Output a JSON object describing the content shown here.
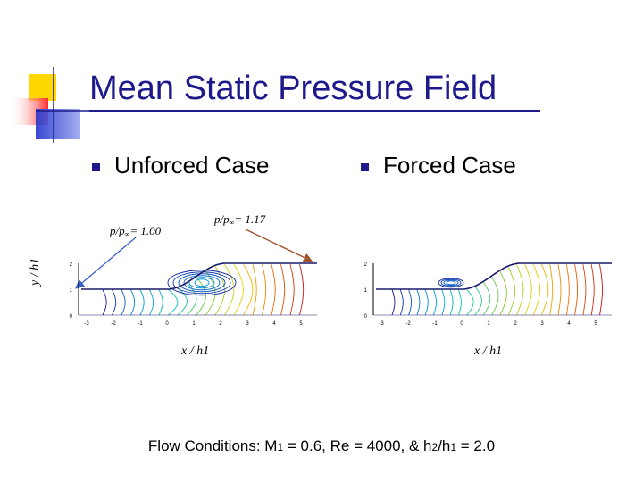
{
  "slide": {
    "title": "Mean Static Pressure Field",
    "bullets": [
      {
        "label": "Unforced Case"
      },
      {
        "label": "Forced Case"
      }
    ],
    "annotations": {
      "left": {
        "prefix": "p/p",
        "sub": "∞",
        "suffix": "= 1.00"
      },
      "right": {
        "prefix": "p/p",
        "sub": "∞",
        "suffix": "= 1.17"
      }
    },
    "y_axis_label": "y / h1",
    "x_axis_label_left": "x / h1",
    "x_axis_label_right": "x / h1",
    "x_ticks": [
      "-3",
      "-2",
      "-1",
      "0",
      "1",
      "2",
      "3",
      "4",
      "5"
    ],
    "y_ticks": [
      "2",
      "1",
      "0"
    ],
    "footer": {
      "t1": "Flow Conditions: M",
      "s1": "1",
      "t2": " = 0.6, Re = 4000, & h",
      "s2": "2",
      "t3": "/h",
      "s3": "1",
      "t4": " = 2.0"
    },
    "colors": {
      "title": "#1f1a8c",
      "bullet": "#1f1a8c",
      "arrow_left": "#3a5fcd",
      "arrow_right": "#a0522d",
      "deco_yellow": "#ffd700",
      "deco_blue": "#3344cc",
      "deco_red": "#ff3333"
    }
  }
}
